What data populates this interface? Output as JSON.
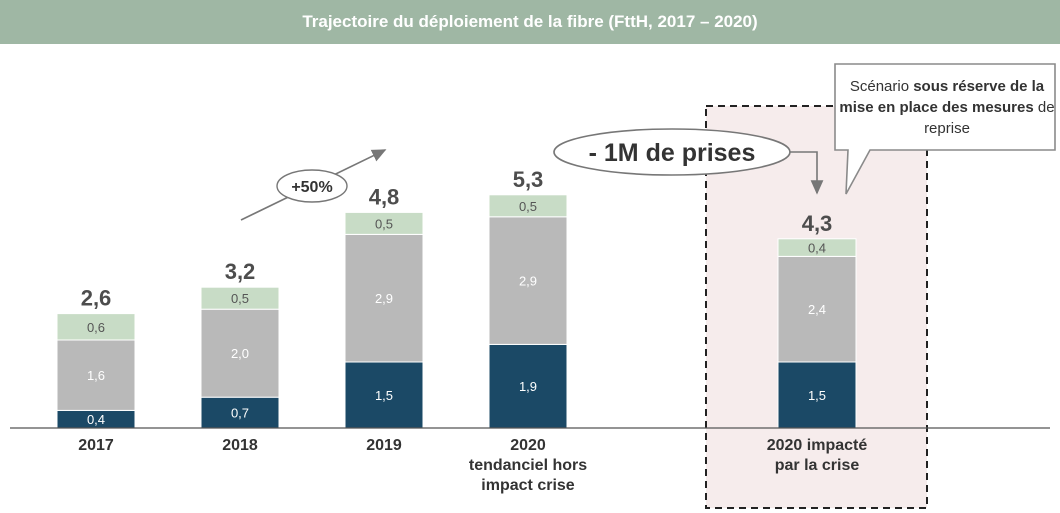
{
  "title": "Trajectoire du déploiement de la fibre (FttH, 2017 – 2020)",
  "colors": {
    "title_bg": "#9fb7a4",
    "segment_bottom": "#1b4966",
    "segment_middle": "#b9b9b9",
    "segment_top": "#c8dcc6",
    "highlight_bg": "#f6ecec",
    "total_label": "#4d4d4d",
    "axis": "#555555"
  },
  "growth_annotation": "+50%",
  "reduction_annotation": "- 1M de prises",
  "scenario_note": {
    "part1": "Scénario ",
    "bold1": "sous réserve de la mise en place des mesures",
    "part2": " de reprise"
  },
  "chart_data": {
    "type": "bar",
    "stacked": true,
    "categories": [
      [
        "2017"
      ],
      [
        "2018"
      ],
      [
        "2019"
      ],
      [
        "2020",
        "tendanciel hors",
        "impact crise"
      ],
      [
        "2020 impacté",
        "par la crise"
      ]
    ],
    "series": [
      {
        "values": [
          0.4,
          0.7,
          1.5,
          1.9,
          1.5
        ],
        "labels": [
          "0,4",
          "0,7",
          "1,5",
          "1,9",
          "1,5"
        ]
      },
      {
        "values": [
          1.6,
          2.0,
          2.9,
          2.9,
          2.4
        ],
        "labels": [
          "1,6",
          "2,0",
          "2,9",
          "2,9",
          "2,4"
        ]
      },
      {
        "values": [
          0.6,
          0.5,
          0.5,
          0.5,
          0.4
        ],
        "labels": [
          "0,6",
          "0,5",
          "0,5",
          "0,5",
          "0,4"
        ]
      }
    ],
    "totals": [
      "2,6",
      "3,2",
      "4,8",
      "5,3",
      "4,3"
    ],
    "highlighted_category_index": 4
  }
}
